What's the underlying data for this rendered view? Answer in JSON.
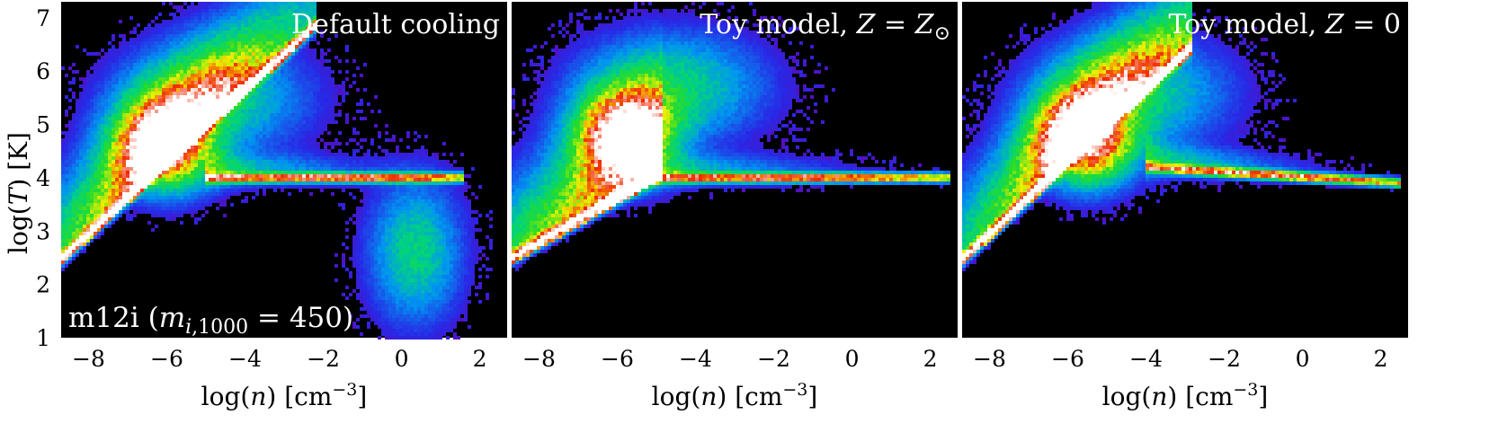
{
  "figure": {
    "ylabel": "log(T) [K]",
    "annotation": "m12i (m_i,1000 = 450)"
  },
  "chart_data": [
    {
      "type": "heatmap",
      "title": "Default cooling",
      "xlabel": "log(n) [cm^-3]",
      "ylabel": "log(T) [K]",
      "xlim": [
        -8.7,
        2.7
      ],
      "ylim": [
        1,
        7.3
      ],
      "xticks": [
        -8,
        -6,
        -4,
        -2,
        0,
        2
      ],
      "yticks": [
        1,
        2,
        3,
        4,
        5,
        6,
        7
      ],
      "features": {
        "adiabat": [
          [
            -8.6,
            2.5
          ],
          [
            -2.4,
            6.7
          ]
        ],
        "hot_peak": [
          -6.0,
          4.6
        ],
        "cool_floor": {
          "x": [
            -5.0,
            1.6
          ],
          "logT": 4.0
        },
        "dense_cold_cloud": {
          "x": [
            -1.5,
            2.2
          ],
          "logT": [
            1.4,
            3.8
          ]
        }
      }
    },
    {
      "type": "heatmap",
      "title": "Toy model, Z = Z⊙",
      "xlabel": "log(n) [cm^-3]",
      "xlim": [
        -8.7,
        2.7
      ],
      "ylim": [
        1,
        7.3
      ],
      "xticks": [
        -8,
        -6,
        -4,
        -2,
        0,
        2
      ],
      "features": {
        "adiabat": [
          [
            -8.6,
            2.5
          ],
          [
            -5.0,
            4.0
          ]
        ],
        "hot_peak": [
          -5.8,
          4.8
        ],
        "cool_floor": {
          "x": [
            -5.5,
            2.5
          ],
          "logT": 4.0
        }
      }
    },
    {
      "type": "heatmap",
      "title": "Toy model, Z = 0",
      "xlabel": "log(n) [cm^-3]",
      "xlim": [
        -8.7,
        2.7
      ],
      "ylim": [
        1,
        7.3
      ],
      "xticks": [
        -8,
        -6,
        -4,
        -2,
        0,
        2
      ],
      "features": {
        "adiabat": [
          [
            -8.6,
            2.5
          ],
          [
            -3.0,
            6.3
          ]
        ],
        "hot_peak": [
          -5.5,
          4.7
        ],
        "cool_floor": {
          "x": [
            -4.0,
            2.5
          ],
          "logT": [
            4.2,
            3.9
          ]
        }
      }
    }
  ]
}
